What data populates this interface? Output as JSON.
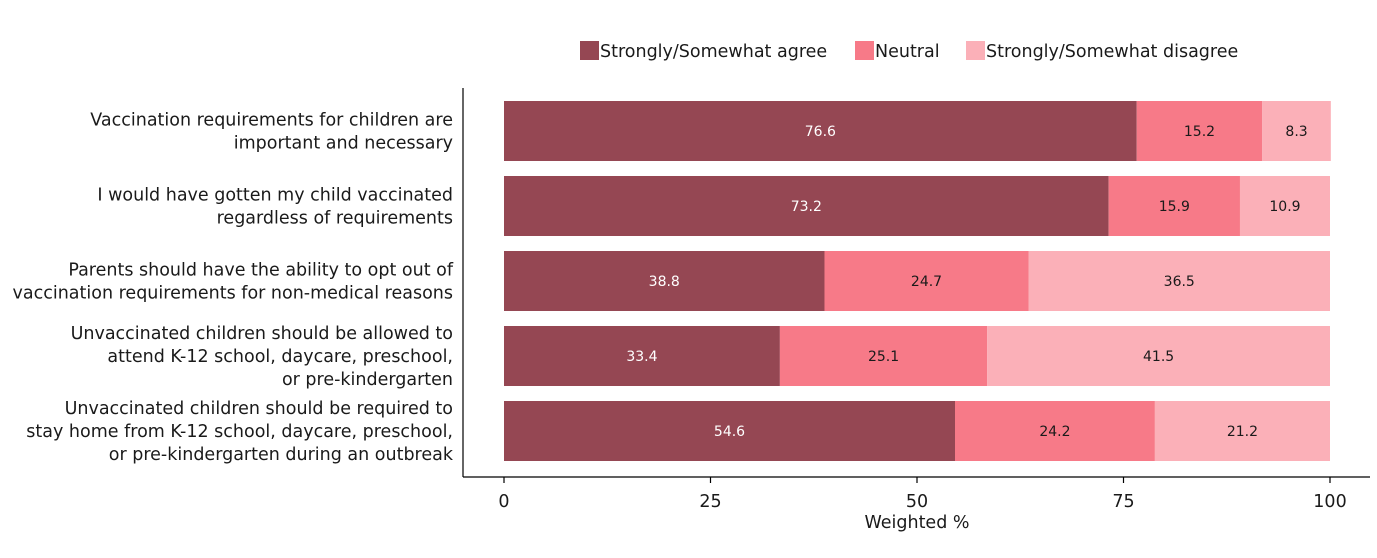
{
  "chart_data": {
    "type": "bar",
    "orientation": "horizontal",
    "stacked": true,
    "title": "",
    "xlabel": "Weighted %",
    "ylabel": "",
    "xlim": [
      0,
      100
    ],
    "xticks": [
      0,
      25,
      50,
      75,
      100
    ],
    "grid": false,
    "legend_position": "top",
    "categories": [
      [
        "Vaccination requirements for children are",
        "important and necessary"
      ],
      [
        "I would have gotten my child vaccinated",
        "regardless of requirements"
      ],
      [
        "Parents should have the ability to opt out of",
        "vaccination requirements for non-medical reasons"
      ],
      [
        "Unvaccinated children should be allowed to",
        "attend K-12 school, daycare, preschool,",
        "or pre-kindergarten"
      ],
      [
        "Unvaccinated children should be required to",
        "stay home from K-12 school, daycare, preschool,",
        "or pre-kindergarten during an outbreak"
      ]
    ],
    "series": [
      {
        "name": "Strongly/Somewhat agree",
        "color": "#954753",
        "label_color": "#ffffff",
        "values": [
          76.6,
          73.2,
          38.8,
          33.4,
          54.6
        ]
      },
      {
        "name": "Neutral",
        "color": "#f77a88",
        "label_color": "#1a1a1a",
        "values": [
          15.2,
          15.9,
          24.7,
          25.1,
          24.2
        ]
      },
      {
        "name": "Strongly/Somewhat disagree",
        "color": "#fbb0b8",
        "label_color": "#1a1a1a",
        "values": [
          8.3,
          10.9,
          36.5,
          41.5,
          21.2
        ]
      }
    ]
  }
}
